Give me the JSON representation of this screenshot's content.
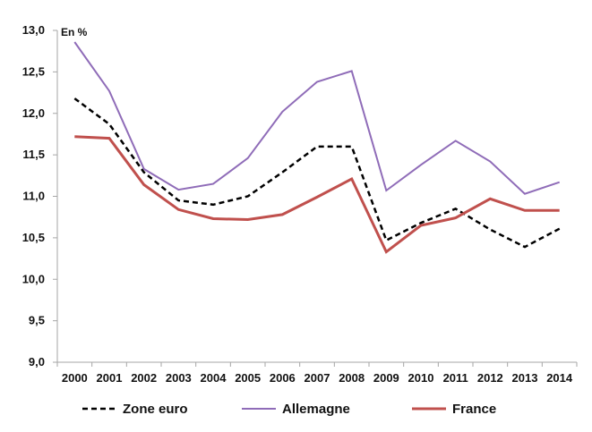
{
  "chart_data": {
    "type": "line",
    "unit_label": "En %",
    "title": "",
    "xlabel": "",
    "ylabel": "",
    "categories": [
      "2000",
      "2001",
      "2002",
      "2003",
      "2004",
      "2005",
      "2006",
      "2007",
      "2008",
      "2009",
      "2010",
      "2011",
      "2012",
      "2013",
      "2014"
    ],
    "y_ticks": [
      "9,0",
      "9,5",
      "10,0",
      "10,5",
      "11,0",
      "11,5",
      "12,0",
      "12,5",
      "13,0"
    ],
    "ylim": [
      9.0,
      13.0
    ],
    "grid": false,
    "legend_position": "bottom",
    "series": [
      {
        "name": "Zone euro",
        "style": "dashed",
        "color": "#000000",
        "values": [
          12.18,
          11.87,
          11.29,
          10.95,
          10.9,
          11.0,
          11.29,
          11.6,
          11.6,
          10.47,
          10.68,
          10.85,
          10.6,
          10.39,
          10.61
        ]
      },
      {
        "name": "Allemagne",
        "style": "solid",
        "color": "#8f6cb8",
        "values": [
          12.86,
          12.27,
          11.33,
          11.08,
          11.15,
          11.46,
          12.02,
          12.38,
          12.51,
          11.07,
          11.38,
          11.67,
          11.42,
          11.03,
          11.17
        ]
      },
      {
        "name": "France",
        "style": "solid",
        "color": "#c0504d",
        "values": [
          11.72,
          11.7,
          11.14,
          10.84,
          10.73,
          10.72,
          10.78,
          10.99,
          11.21,
          10.33,
          10.65,
          10.74,
          10.97,
          10.83,
          10.83
        ]
      }
    ]
  }
}
